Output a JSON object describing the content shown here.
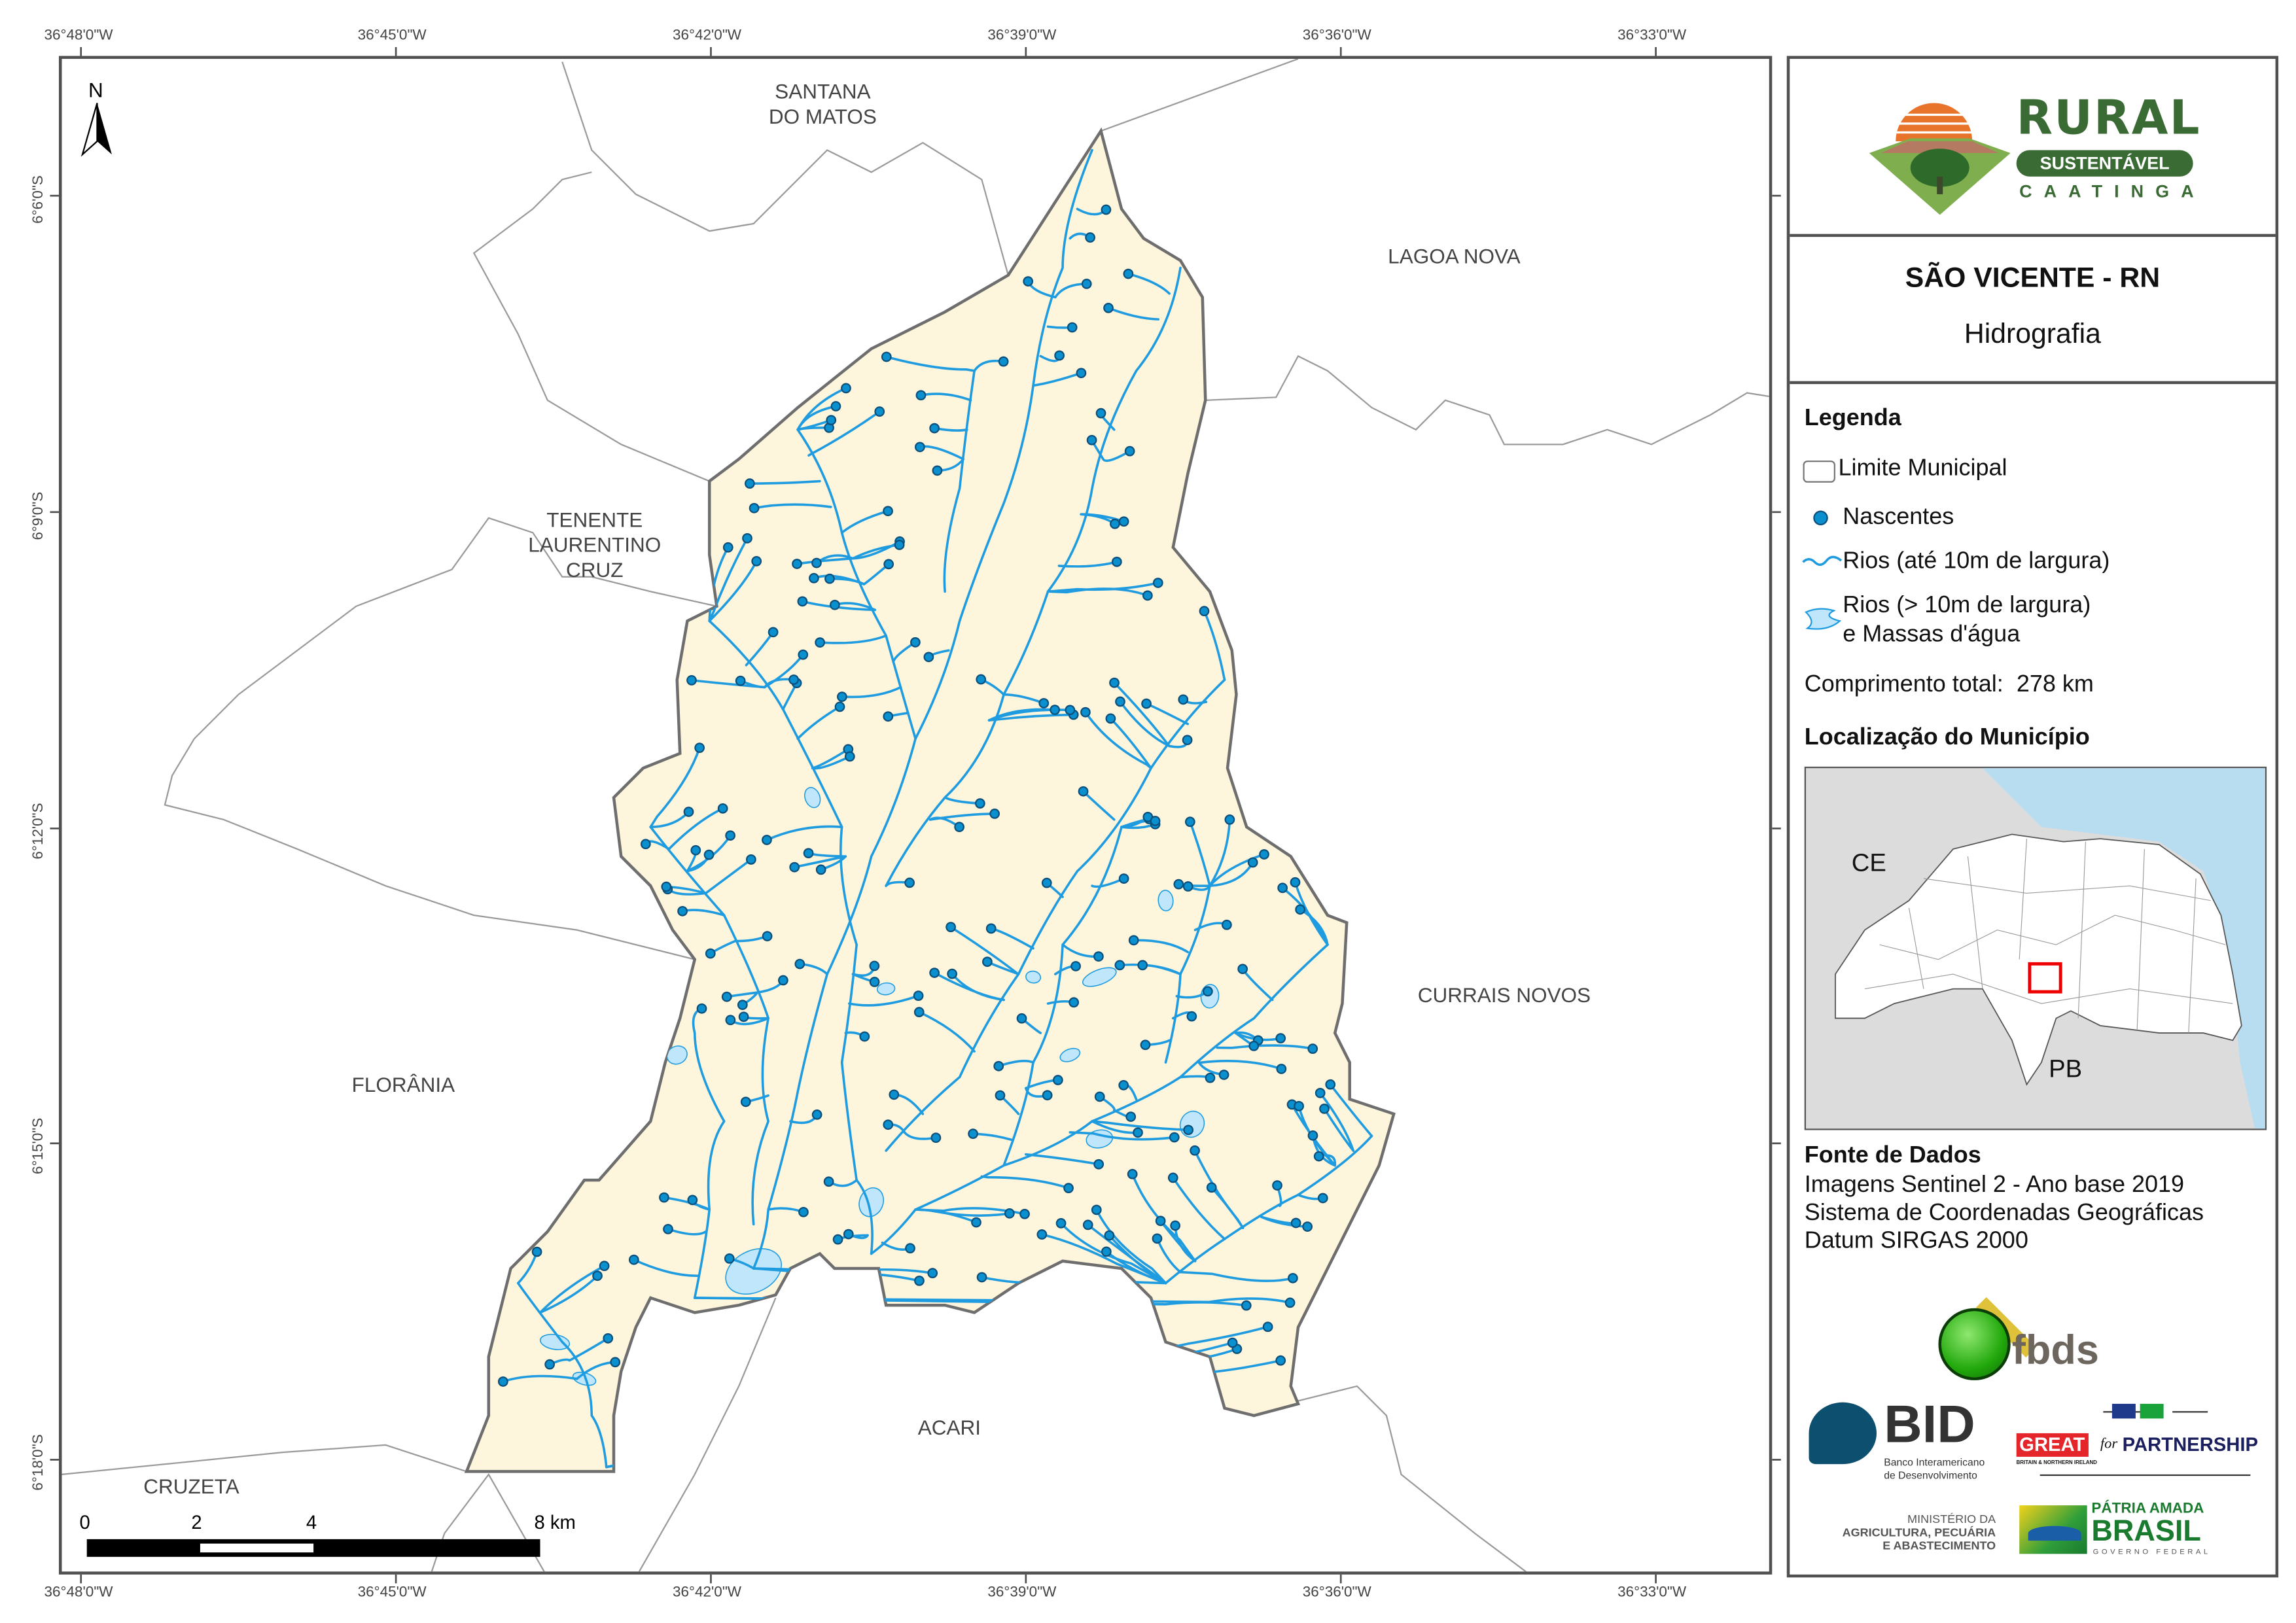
{
  "axes": {
    "top_ticks": [
      "36°48'0\"W",
      "36°45'0\"W",
      "36°42'0\"W",
      "36°39'0\"W",
      "36°36'0\"W",
      "36°33'0\"W"
    ],
    "bottom_ticks": [
      "36°48'0\"W",
      "36°45'0\"W",
      "36°42'0\"W",
      "36°39'0\"W",
      "36°36'0\"W",
      "36°33'0\"W"
    ],
    "left_ticks": [
      "6°6'0\"S",
      "6°9'0\"S",
      "6°12'0\"S",
      "6°15'0\"S",
      "6°18'0\"S"
    ]
  },
  "map": {
    "north_label": "N",
    "neighbors": {
      "santana_1": "SANTANA",
      "santana_2": "DO MATOS",
      "lagoa_nova": "LAGOA NOVA",
      "tenente_1": "TENENTE",
      "tenente_2": "LAURENTINO",
      "tenente_3": "CRUZ",
      "currais_novos": "CURRAIS NOVOS",
      "florania": "FLORÂNIA",
      "acari": "ACARI",
      "cruzeta": "CRUZETA"
    },
    "scale_bar": {
      "labels": [
        "0",
        "2",
        "4",
        "8 km"
      ]
    },
    "colors": {
      "municipality_fill": "#fdf5dc",
      "river": "#1f9be0",
      "water_body": "#bfe6fa",
      "spring": "#0a8fcf",
      "boundary": "#6e6e6e"
    }
  },
  "panel": {
    "logo": {
      "rural": "RURAL",
      "sustentavel": "SUSTENTÁVEL",
      "caatinga": "CAATINGA"
    },
    "title": "SÃO VICENTE - RN",
    "subtitle": "Hidrografia",
    "legend": {
      "heading": "Legenda",
      "items": [
        {
          "label": "Limite Municipal",
          "icon": "boundary-box-icon"
        },
        {
          "label": "Nascentes",
          "icon": "spring-dot-icon"
        },
        {
          "label": "Rios (até 10m de largura)",
          "icon": "river-line-icon"
        },
        {
          "label": "Rios (> 10m de largura)",
          "label2": "e Massas d'água",
          "icon": "water-body-icon"
        }
      ],
      "total_length_label": "Comprimento total:",
      "total_length_value": "278 km"
    },
    "location": {
      "heading": "Localização do Município",
      "ce": "CE",
      "pb": "PB"
    },
    "sources": {
      "heading": "Fonte de Dados",
      "lines": [
        "Imagens Sentinel 2 - Ano base 2019",
        "Sistema de Coordenadas Geográficas",
        "Datum SIRGAS 2000"
      ]
    },
    "partners": {
      "fbds": "fbds",
      "bid": "BID",
      "bid_sub1": "Banco Interamericano",
      "bid_sub2": "de Desenvolvimento",
      "great": "GREAT",
      "great_for": "for",
      "partnership": "PARTNERSHIP",
      "great_sub": "BRITAIN & NORTHERN IRELAND",
      "ministerio1": "MINISTÉRIO DA",
      "ministerio2": "AGRICULTURA, PECUÁRIA",
      "ministerio3": "E ABASTECIMENTO",
      "patria": "PÁTRIA AMADA",
      "brasil": "BRASIL",
      "governo": "GOVERNO FEDERAL"
    }
  }
}
